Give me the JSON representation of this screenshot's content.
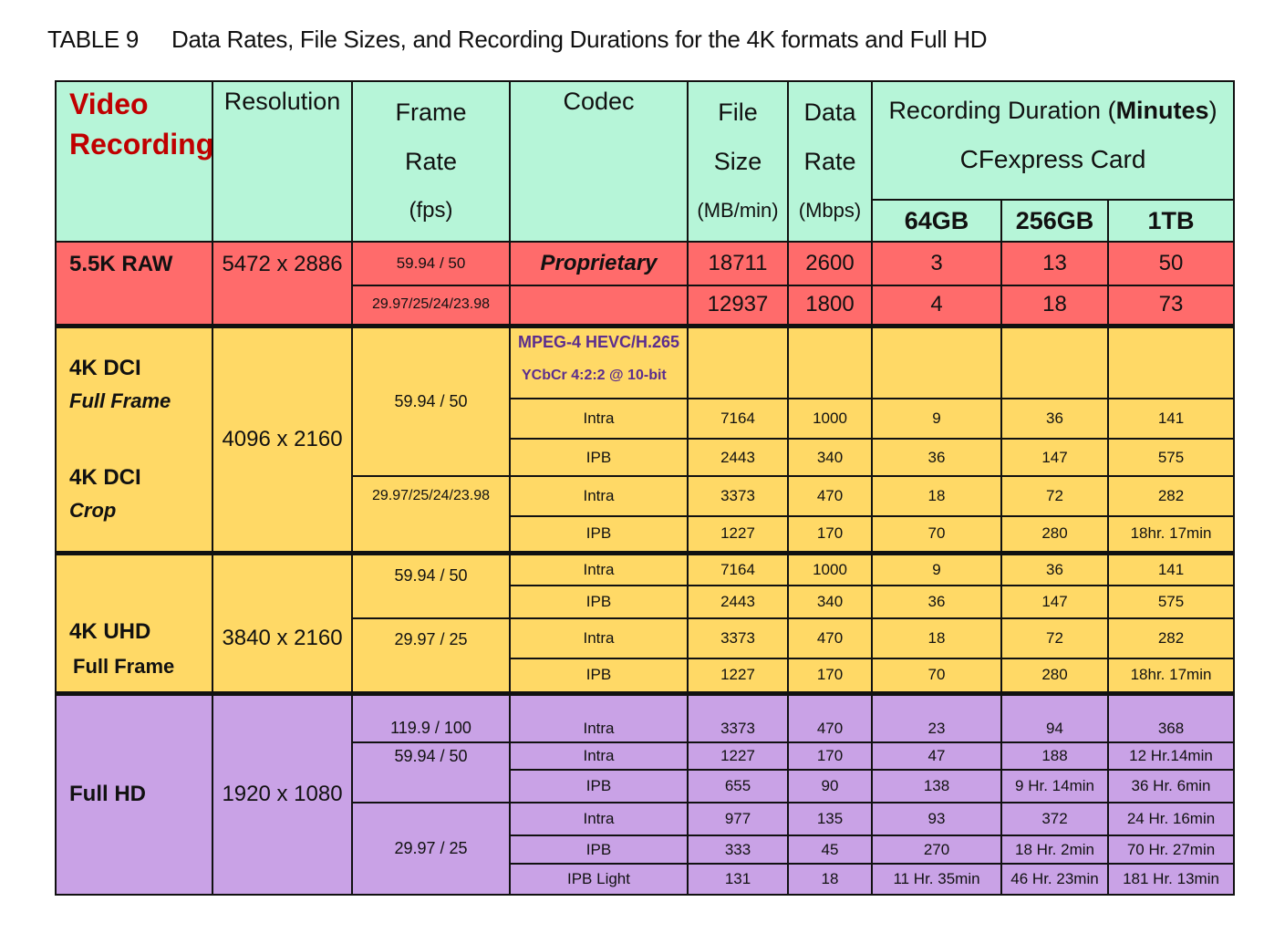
{
  "caption": {
    "label": "TABLE 9",
    "text": "Data Rates, File Sizes, and Recording Durations for the 4K formats and Full HD"
  },
  "headers": {
    "video_recording": [
      "Video",
      "Recording"
    ],
    "resolution": "Resolution",
    "frame_rate": [
      "Frame",
      "Rate",
      "(fps)"
    ],
    "codec": "Codec",
    "file_size": [
      "File",
      "Size",
      "(MB/min)"
    ],
    "data_rate": [
      "Data",
      "Rate",
      "(Mbps)"
    ],
    "recording_duration": [
      "Recording Duration (",
      "Minutes",
      ")",
      "CFexpress Card"
    ],
    "cards": [
      "64GB",
      "256GB",
      "1TB"
    ]
  },
  "raw": {
    "label": "5.5K RAW",
    "resolution": "5472 x 2886",
    "rows": [
      {
        "fps": "59.94 / 50",
        "codec": "Proprietary",
        "size": "18711",
        "rate": "2600",
        "d64": "3",
        "d256": "13",
        "d1t": "50"
      },
      {
        "fps": "29.97/25/24/23.98",
        "codec": "",
        "size": "12937",
        "rate": "1800",
        "d64": "4",
        "d256": "18",
        "d1t": "73"
      }
    ]
  },
  "dci": {
    "label1": "4K DCI",
    "sub1": "Full Frame",
    "label2": "4K DCI",
    "sub2": "Crop",
    "resolution": "4096 x 2160",
    "codec_line1": "MPEG-4 HEVC/H.265",
    "codec_line2": "YCbCr 4:2:2 @ 10-bit",
    "fps1": "59.94 / 50",
    "fps2": "29.97/25/24/23.98",
    "rows": [
      {
        "codec": "Intra",
        "size": "7164",
        "rate": "1000",
        "d64": "9",
        "d256": "36",
        "d1t": "141"
      },
      {
        "codec": "IPB",
        "size": "2443",
        "rate": "340",
        "d64": "36",
        "d256": "147",
        "d1t": "575"
      },
      {
        "codec": "Intra",
        "size": "3373",
        "rate": "470",
        "d64": "18",
        "d256": "72",
        "d1t": "282"
      },
      {
        "codec": "IPB",
        "size": "1227",
        "rate": "170",
        "d64": "70",
        "d256": "280",
        "d1t": "18hr. 17min"
      }
    ]
  },
  "uhd": {
    "label": "4K UHD",
    "sub": "Full Frame",
    "resolution": "3840 x 2160",
    "fps1": "59.94 / 50",
    "fps2": "29.97 / 25",
    "rows": [
      {
        "codec": "Intra",
        "size": "7164",
        "rate": "1000",
        "d64": "9",
        "d256": "36",
        "d1t": "141"
      },
      {
        "codec": "IPB",
        "size": "2443",
        "rate": "340",
        "d64": "36",
        "d256": "147",
        "d1t": "575"
      },
      {
        "codec": "Intra",
        "size": "3373",
        "rate": "470",
        "d64": "18",
        "d256": "72",
        "d1t": "282"
      },
      {
        "codec": "IPB",
        "size": "1227",
        "rate": "170",
        "d64": "70",
        "d256": "280",
        "d1t": "18hr. 17min"
      }
    ]
  },
  "fhd": {
    "label": "Full HD",
    "resolution": "1920 x 1080",
    "fps1": "119.9 / 100",
    "fps2": "59.94 / 50",
    "fps3": "29.97 / 25",
    "rows": [
      {
        "codec": "Intra",
        "size": "3373",
        "rate": "470",
        "d64": "23",
        "d256": "94",
        "d1t": "368"
      },
      {
        "codec": "Intra",
        "size": "1227",
        "rate": "170",
        "d64": "47",
        "d256": "188",
        "d1t": "12 Hr.14min"
      },
      {
        "codec": "IPB",
        "size": "655",
        "rate": "90",
        "d64": "138",
        "d256": "9 Hr. 14min",
        "d1t": "36 Hr. 6min"
      },
      {
        "codec": "Intra",
        "size": "977",
        "rate": "135",
        "d64": "93",
        "d256": "372",
        "d1t": "24 Hr. 16min"
      },
      {
        "codec": "IPB",
        "size": "333",
        "rate": "45",
        "d64": "270",
        "d256": "18 Hr. 2min",
        "d1t": "70 Hr. 27min"
      },
      {
        "codec": "IPB Light",
        "size": "131",
        "rate": "18",
        "d64": "11 Hr. 35min",
        "d256": "46 Hr. 23min",
        "d1t": "181 Hr. 13min"
      }
    ]
  }
}
